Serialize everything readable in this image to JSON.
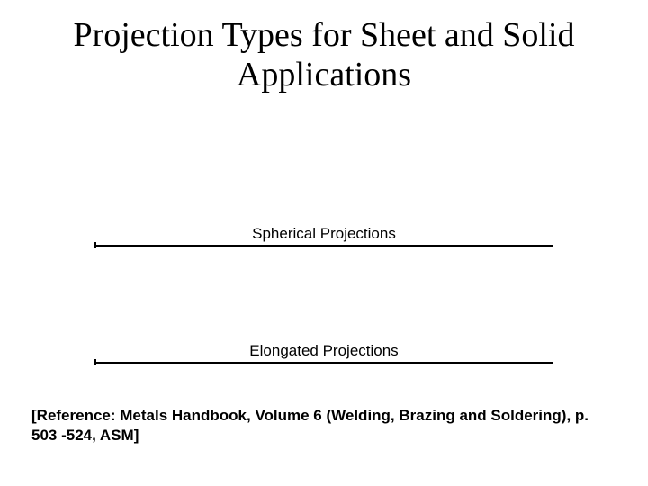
{
  "title": "Projection Types for Sheet and Solid Applications",
  "sections": {
    "spherical": {
      "label": "Spherical Projections"
    },
    "elongated": {
      "label": "Elongated Projections"
    }
  },
  "reference": "[Reference:  Metals Handbook, Volume 6 (Welding, Brazing and Soldering),  p. 503 -524, ASM]",
  "styling": {
    "background_color": "#ffffff",
    "title_font": "Times New Roman",
    "title_fontsize": 38,
    "title_color": "#000000",
    "label_font": "Arial",
    "label_fontsize": 17,
    "label_color": "#000000",
    "reference_font": "Arial",
    "reference_fontsize": 17,
    "reference_fontweight": "bold",
    "line_color": "#000000",
    "line_width": 1.5,
    "tick_height": 7
  }
}
